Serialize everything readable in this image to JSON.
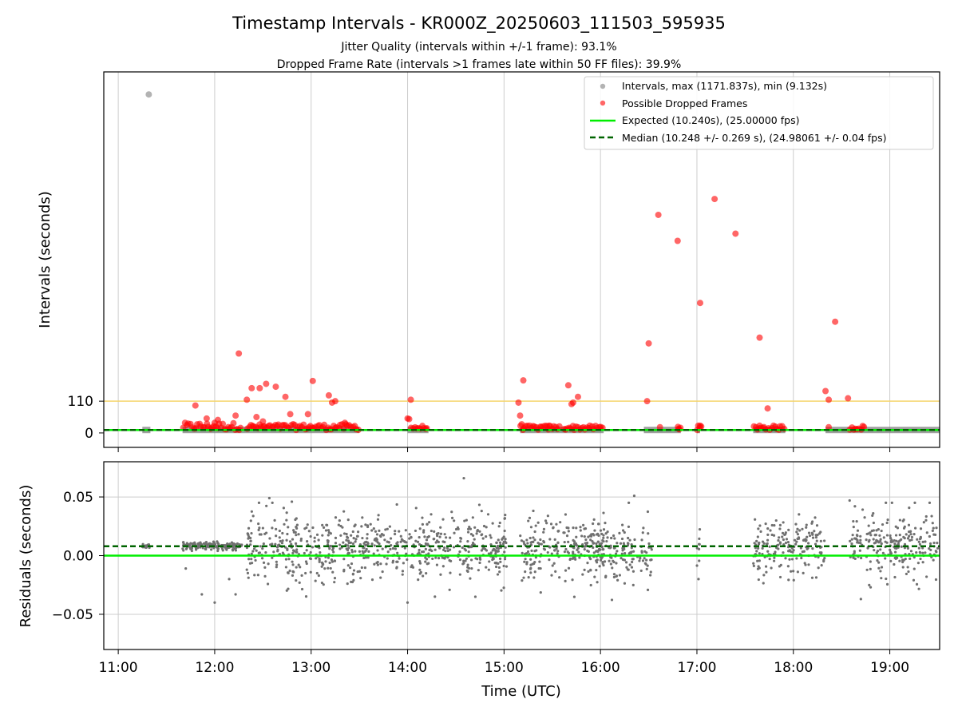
{
  "title": "Timestamp Intervals - KR000Z_20250603_111503_595935",
  "subtitle_lines": [
    "Jitter Quality (intervals within +/-1 frame): 93.1%",
    "Dropped Frame Rate (intervals >1 frames late within 50 FF files): 39.9%"
  ],
  "colors": {
    "intervals": "#808080",
    "dropped": "#ff0000",
    "expected": "#00ee00",
    "median": "#006400",
    "threshold": "#f5d46b",
    "grid": "#cccccc",
    "residual": "#707070"
  },
  "chart_data": [
    {
      "type": "scatter",
      "panel": "intervals",
      "ylabel": "Intervals (seconds)",
      "xlim": [
        "10:51",
        "19:31"
      ],
      "ylim": [
        -50,
        1250
      ],
      "yticks": [
        0,
        110
      ],
      "xticks": [
        "11:00",
        "12:00",
        "13:00",
        "14:00",
        "15:00",
        "16:00",
        "17:00",
        "18:00",
        "19:00"
      ],
      "grid": "x",
      "legend_position": "upper right",
      "legend": [
        "Intervals, max (1171.837s), min (9.132s)",
        "Possible Dropped Frames",
        "Expected (10.240s), (25.00000 fps)",
        "Median (10.248 +/- 0.269 s), (24.98061 +/- 0.04 fps)"
      ],
      "expected": 10.24,
      "median": 10.248,
      "threshold": 110,
      "normal_segments": [
        [
          "11:15",
          "11:20"
        ],
        [
          "11:40",
          "13:30"
        ],
        [
          "14:00",
          "14:13"
        ],
        [
          "15:10",
          "16:02"
        ],
        [
          "16:27",
          "16:50"
        ],
        [
          "17:00",
          "17:02"
        ],
        [
          "17:35",
          "17:55"
        ],
        [
          "18:20",
          "19:31"
        ]
      ],
      "interval_outliers": [
        {
          "x": "11:19",
          "y": 1172
        }
      ],
      "dropped_frames": [
        {
          "x": "11:48",
          "y": 95
        },
        {
          "x": "11:55",
          "y": 50
        },
        {
          "x": "12:00",
          "y": 35
        },
        {
          "x": "12:02",
          "y": 45
        },
        {
          "x": "12:13",
          "y": 60
        },
        {
          "x": "12:15",
          "y": 275
        },
        {
          "x": "12:20",
          "y": 115
        },
        {
          "x": "12:23",
          "y": 155
        },
        {
          "x": "12:26",
          "y": 55
        },
        {
          "x": "12:28",
          "y": 155
        },
        {
          "x": "12:30",
          "y": 40
        },
        {
          "x": "12:32",
          "y": 170
        },
        {
          "x": "12:38",
          "y": 160
        },
        {
          "x": "12:44",
          "y": 125
        },
        {
          "x": "12:47",
          "y": 65
        },
        {
          "x": "12:58",
          "y": 65
        },
        {
          "x": "13:01",
          "y": 180
        },
        {
          "x": "13:11",
          "y": 130
        },
        {
          "x": "13:13",
          "y": 105
        },
        {
          "x": "13:15",
          "y": 110
        },
        {
          "x": "13:21",
          "y": 35
        },
        {
          "x": "14:00",
          "y": 50
        },
        {
          "x": "14:01",
          "y": 48
        },
        {
          "x": "14:02",
          "y": 115
        },
        {
          "x": "15:09",
          "y": 105
        },
        {
          "x": "15:10",
          "y": 60
        },
        {
          "x": "15:12",
          "y": 182
        },
        {
          "x": "15:11",
          "y": 30
        },
        {
          "x": "15:28",
          "y": 25
        },
        {
          "x": "15:40",
          "y": 165
        },
        {
          "x": "15:42",
          "y": 100
        },
        {
          "x": "15:43",
          "y": 105
        },
        {
          "x": "15:46",
          "y": 125
        },
        {
          "x": "16:29",
          "y": 110
        },
        {
          "x": "16:30",
          "y": 310
        },
        {
          "x": "16:36",
          "y": 755
        },
        {
          "x": "16:37",
          "y": 20
        },
        {
          "x": "16:48",
          "y": 665
        },
        {
          "x": "17:02",
          "y": 450
        },
        {
          "x": "17:02",
          "y": 25
        },
        {
          "x": "17:11",
          "y": 810
        },
        {
          "x": "17:24",
          "y": 690
        },
        {
          "x": "17:39",
          "y": 330
        },
        {
          "x": "17:39",
          "y": 25
        },
        {
          "x": "17:44",
          "y": 85
        },
        {
          "x": "18:20",
          "y": 145
        },
        {
          "x": "18:22",
          "y": 115
        },
        {
          "x": "18:22",
          "y": 20
        },
        {
          "x": "18:26",
          "y": 385
        },
        {
          "x": "18:34",
          "y": 120
        }
      ],
      "dropped_clusters": [
        {
          "from": "11:40",
          "to": "12:17",
          "y_max": 25
        },
        {
          "from": "12:20",
          "to": "12:45",
          "y_max": 20
        },
        {
          "from": "12:45",
          "to": "13:30",
          "y_max": 20
        },
        {
          "from": "14:02",
          "to": "14:13",
          "y_max": 15
        },
        {
          "from": "15:10",
          "to": "15:35",
          "y_max": 15
        },
        {
          "from": "15:37",
          "to": "16:02",
          "y_max": 15
        },
        {
          "from": "16:48",
          "to": "16:50",
          "y_max": 15
        },
        {
          "from": "17:00",
          "to": "17:03",
          "y_max": 15
        },
        {
          "from": "17:35",
          "to": "17:55",
          "y_max": 15
        },
        {
          "from": "18:35",
          "to": "18:45",
          "y_max": 15
        }
      ]
    },
    {
      "type": "scatter",
      "panel": "residuals",
      "xlabel": "Time (UTC)",
      "ylabel": "Residuals (seconds)",
      "xlim": [
        "10:51",
        "19:31"
      ],
      "ylim": [
        -0.08,
        0.08
      ],
      "yticks": [
        -0.05,
        0.0,
        0.05
      ],
      "xticks": [
        "11:00",
        "12:00",
        "13:00",
        "14:00",
        "15:00",
        "16:00",
        "17:00",
        "18:00",
        "19:00"
      ],
      "grid": "both",
      "expected_residual": 0.0,
      "median_residual": 0.008,
      "residual_segments": [
        {
          "from": "11:15",
          "to": "11:20",
          "mean": 0.008,
          "spread": 0.001
        },
        {
          "from": "11:40",
          "to": "12:17",
          "mean": 0.008,
          "spread": 0.002
        },
        {
          "from": "12:20",
          "to": "13:30",
          "mean": 0.006,
          "spread": 0.016
        },
        {
          "from": "13:30",
          "to": "14:14",
          "mean": 0.008,
          "spread": 0.015
        },
        {
          "from": "14:14",
          "to": "15:02",
          "mean": 0.008,
          "spread": 0.015
        },
        {
          "from": "15:10",
          "to": "15:35",
          "mean": 0.006,
          "spread": 0.016
        },
        {
          "from": "15:37",
          "to": "16:02",
          "mean": 0.006,
          "spread": 0.015
        },
        {
          "from": "15:55",
          "to": "16:32",
          "mean": 0.005,
          "spread": 0.016
        },
        {
          "from": "17:00",
          "to": "17:02",
          "mean": 0.005,
          "spread": 0.012
        },
        {
          "from": "17:35",
          "to": "18:20",
          "mean": 0.007,
          "spread": 0.015
        },
        {
          "from": "18:35",
          "to": "19:31",
          "mean": 0.008,
          "spread": 0.016
        }
      ],
      "residual_outliers": [
        {
          "x": "11:42",
          "y": -0.011
        },
        {
          "x": "11:52",
          "y": -0.033
        },
        {
          "x": "12:00",
          "y": -0.04
        },
        {
          "x": "12:09",
          "y": -0.02
        },
        {
          "x": "12:13",
          "y": -0.033
        },
        {
          "x": "12:20",
          "y": -0.012
        },
        {
          "x": "12:34",
          "y": 0.049
        },
        {
          "x": "12:48",
          "y": 0.046
        },
        {
          "x": "14:35",
          "y": 0.066
        },
        {
          "x": "14:17",
          "y": -0.035
        },
        {
          "x": "16:21",
          "y": 0.051
        },
        {
          "x": "17:01",
          "y": -0.02
        },
        {
          "x": "18:35",
          "y": 0.047
        },
        {
          "x": "18:42",
          "y": -0.037
        }
      ]
    }
  ]
}
